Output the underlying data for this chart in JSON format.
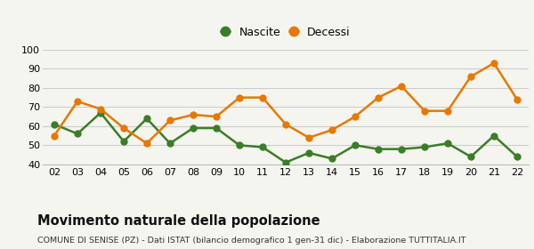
{
  "years": [
    "02",
    "03",
    "04",
    "05",
    "06",
    "07",
    "08",
    "09",
    "10",
    "11",
    "12",
    "13",
    "14",
    "15",
    "16",
    "17",
    "18",
    "19",
    "20",
    "21",
    "22"
  ],
  "nascite": [
    61,
    56,
    67,
    52,
    64,
    51,
    59,
    59,
    50,
    49,
    41,
    46,
    43,
    50,
    48,
    48,
    49,
    51,
    44,
    55,
    44
  ],
  "decessi": [
    55,
    73,
    69,
    59,
    51,
    63,
    66,
    65,
    75,
    75,
    61,
    54,
    58,
    65,
    75,
    81,
    68,
    68,
    86,
    93,
    74
  ],
  "nascite_color": "#3a7d27",
  "decessi_color": "#e87800",
  "bg_color": "#f5f5f0",
  "grid_color": "#cccccc",
  "ylim": [
    40,
    100
  ],
  "yticks": [
    40,
    50,
    60,
    70,
    80,
    90,
    100
  ],
  "title": "Movimento naturale della popolazione",
  "subtitle": "COMUNE DI SENISE (PZ) - Dati ISTAT (bilancio demografico 1 gen-31 dic) - Elaborazione TUTTITALIA.IT",
  "legend_nascite": "Nascite",
  "legend_decessi": "Decessi",
  "marker_size": 5,
  "line_width": 1.8
}
